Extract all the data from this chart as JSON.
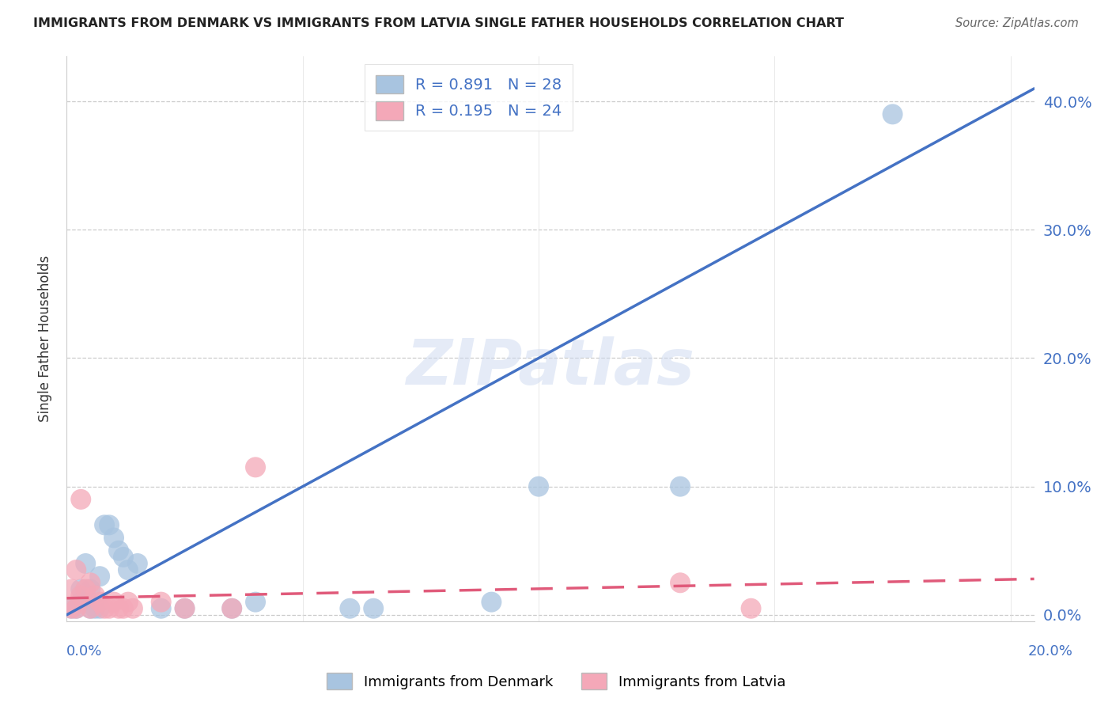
{
  "title": "IMMIGRANTS FROM DENMARK VS IMMIGRANTS FROM LATVIA SINGLE FATHER HOUSEHOLDS CORRELATION CHART",
  "source": "Source: ZipAtlas.com",
  "ylabel": "Single Father Households",
  "y_ticks": [
    0.0,
    0.1,
    0.2,
    0.3,
    0.4
  ],
  "x_ticks": [
    0.0,
    0.05,
    0.1,
    0.15,
    0.2
  ],
  "xlim": [
    0.0,
    0.205
  ],
  "ylim": [
    -0.005,
    0.435
  ],
  "denmark_R": 0.891,
  "denmark_N": 28,
  "latvia_R": 0.195,
  "latvia_N": 24,
  "denmark_color": "#a8c4e0",
  "latvia_color": "#f4a8b8",
  "denmark_line_color": "#4472c4",
  "latvia_line_color": "#e05a7a",
  "legend_label_denmark": "Immigrants from Denmark",
  "legend_label_latvia": "Immigrants from Latvia",
  "watermark": "ZIPatlas",
  "background_color": "#ffffff",
  "denmark_points_x": [
    0.001,
    0.002,
    0.003,
    0.003,
    0.004,
    0.004,
    0.005,
    0.005,
    0.006,
    0.007,
    0.007,
    0.008,
    0.009,
    0.01,
    0.011,
    0.012,
    0.013,
    0.015,
    0.02,
    0.025,
    0.035,
    0.04,
    0.06,
    0.065,
    0.09,
    0.1,
    0.13,
    0.175
  ],
  "denmark_points_y": [
    0.005,
    0.005,
    0.01,
    0.02,
    0.015,
    0.04,
    0.005,
    0.02,
    0.005,
    0.005,
    0.03,
    0.07,
    0.07,
    0.06,
    0.05,
    0.045,
    0.035,
    0.04,
    0.005,
    0.005,
    0.005,
    0.01,
    0.005,
    0.005,
    0.01,
    0.1,
    0.1,
    0.39
  ],
  "latvia_points_x": [
    0.001,
    0.001,
    0.002,
    0.002,
    0.003,
    0.003,
    0.004,
    0.005,
    0.005,
    0.006,
    0.007,
    0.008,
    0.009,
    0.01,
    0.011,
    0.012,
    0.013,
    0.014,
    0.02,
    0.025,
    0.035,
    0.04,
    0.13,
    0.145
  ],
  "latvia_points_y": [
    0.005,
    0.02,
    0.005,
    0.035,
    0.015,
    0.09,
    0.02,
    0.005,
    0.025,
    0.015,
    0.01,
    0.005,
    0.005,
    0.01,
    0.005,
    0.005,
    0.01,
    0.005,
    0.01,
    0.005,
    0.005,
    0.115,
    0.025,
    0.005
  ],
  "dk_line_x": [
    0.0,
    0.205
  ],
  "dk_line_y": [
    0.0,
    0.41
  ],
  "lv_line_x": [
    0.0,
    0.205
  ],
  "lv_line_y": [
    0.013,
    0.028
  ]
}
